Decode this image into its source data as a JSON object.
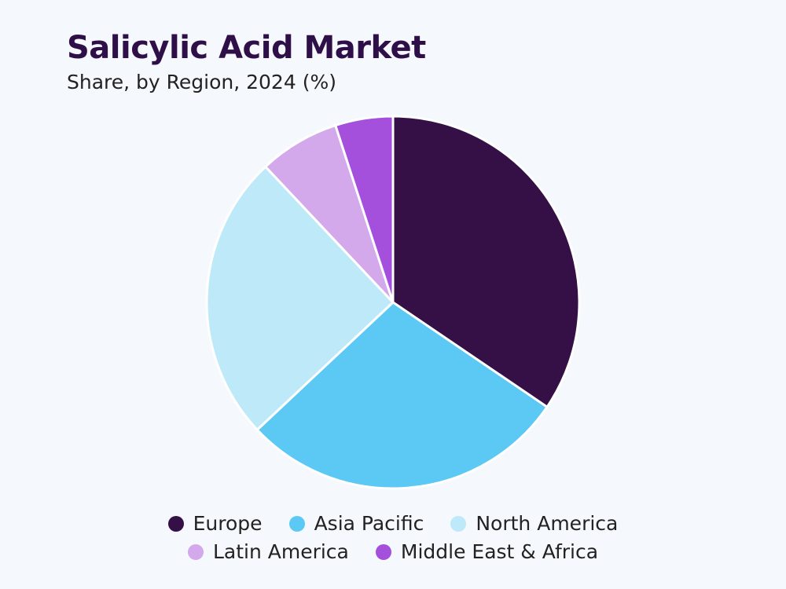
{
  "chart_data": {
    "type": "pie",
    "title": "Salicylic Acid Market",
    "subtitle": "Share, by Region, 2024 (%)",
    "series": [
      {
        "name": "Europe",
        "value": 34.5,
        "color": "#351046"
      },
      {
        "name": "Asia Pacific",
        "value": 28.5,
        "color": "#5bc9f4"
      },
      {
        "name": "North America",
        "value": 25.0,
        "color": "#bde9f8"
      },
      {
        "name": "Latin America",
        "value": 7.0,
        "color": "#d3a9ec"
      },
      {
        "name": "Middle East & Africa",
        "value": 5.0,
        "color": "#a450dc"
      }
    ],
    "legend_position": "bottom"
  }
}
